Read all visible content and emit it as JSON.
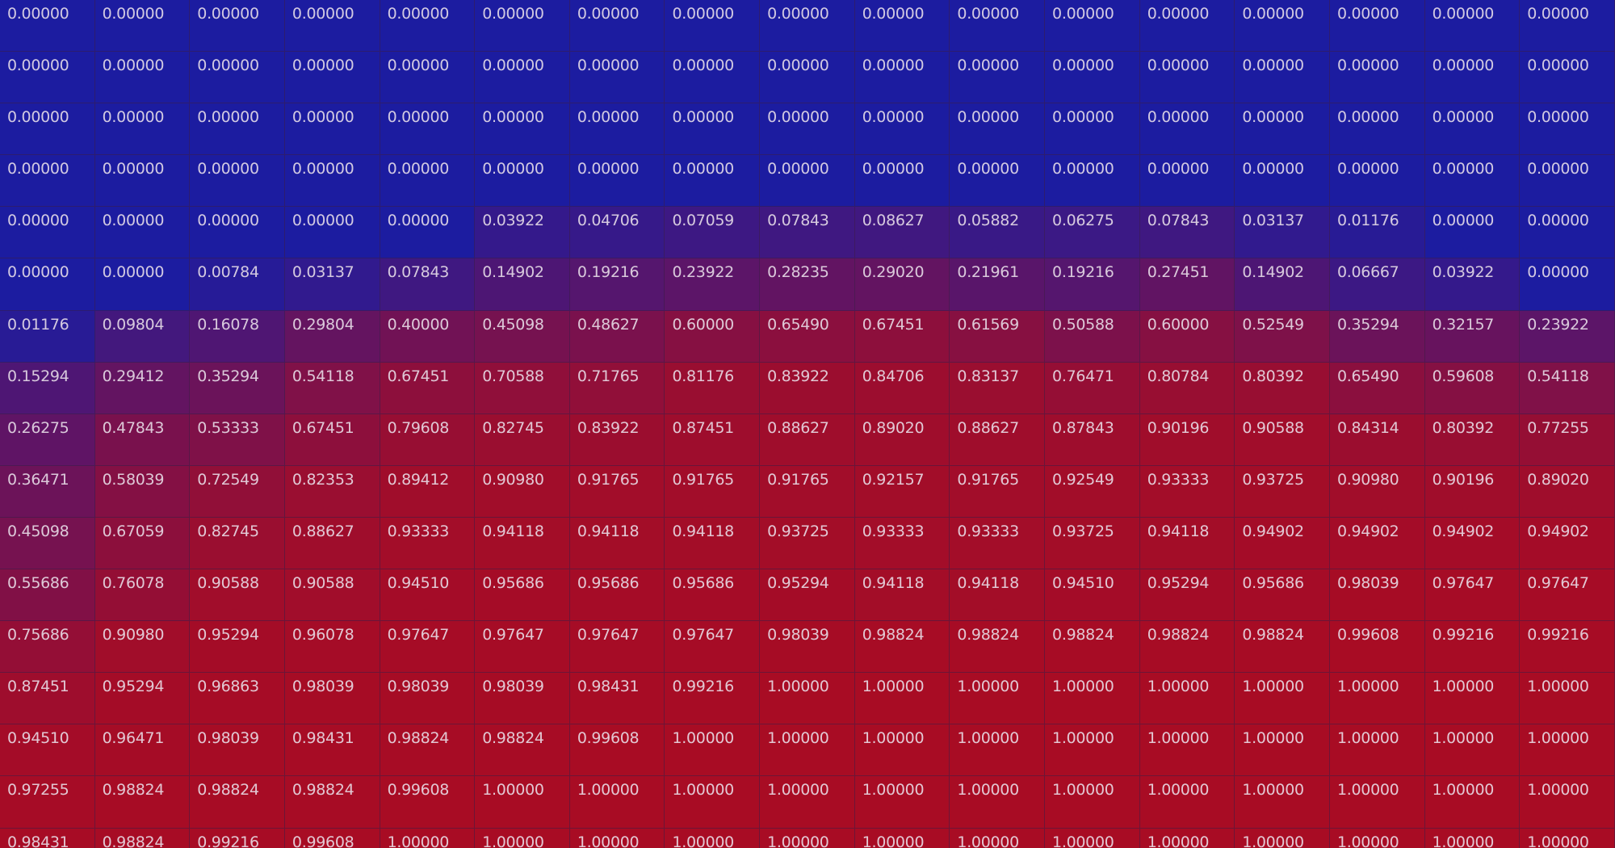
{
  "chart_data": {
    "type": "heatmap",
    "colors": {
      "low": "#1c1ca0",
      "high": "#a80c24"
    },
    "values": [
      [
        "0.00000",
        "0.00000",
        "0.00000",
        "0.00000",
        "0.00000",
        "0.00000",
        "0.00000",
        "0.00000",
        "0.00000",
        "0.00000",
        "0.00000",
        "0.00000",
        "0.00000",
        "0.00000",
        "0.00000",
        "0.00000",
        "0.00000"
      ],
      [
        "0.00000",
        "0.00000",
        "0.00000",
        "0.00000",
        "0.00000",
        "0.00000",
        "0.00000",
        "0.00000",
        "0.00000",
        "0.00000",
        "0.00000",
        "0.00000",
        "0.00000",
        "0.00000",
        "0.00000",
        "0.00000",
        "0.00000"
      ],
      [
        "0.00000",
        "0.00000",
        "0.00000",
        "0.00000",
        "0.00000",
        "0.00000",
        "0.00000",
        "0.00000",
        "0.00000",
        "0.00000",
        "0.00000",
        "0.00000",
        "0.00000",
        "0.00000",
        "0.00000",
        "0.00000",
        "0.00000"
      ],
      [
        "0.00000",
        "0.00000",
        "0.00000",
        "0.00000",
        "0.00000",
        "0.00000",
        "0.00000",
        "0.00000",
        "0.00000",
        "0.00000",
        "0.00000",
        "0.00000",
        "0.00000",
        "0.00000",
        "0.00000",
        "0.00000",
        "0.00000"
      ],
      [
        "0.00000",
        "0.00000",
        "0.00000",
        "0.00000",
        "0.00000",
        "0.03922",
        "0.04706",
        "0.07059",
        "0.07843",
        "0.08627",
        "0.05882",
        "0.06275",
        "0.07843",
        "0.03137",
        "0.01176",
        "0.00000",
        "0.00000"
      ],
      [
        "0.00000",
        "0.00000",
        "0.00784",
        "0.03137",
        "0.07843",
        "0.14902",
        "0.19216",
        "0.23922",
        "0.28235",
        "0.29020",
        "0.21961",
        "0.19216",
        "0.27451",
        "0.14902",
        "0.06667",
        "0.03922",
        "0.00000"
      ],
      [
        "0.01176",
        "0.09804",
        "0.16078",
        "0.29804",
        "0.40000",
        "0.45098",
        "0.48627",
        "0.60000",
        "0.65490",
        "0.67451",
        "0.61569",
        "0.50588",
        "0.60000",
        "0.52549",
        "0.35294",
        "0.32157",
        "0.23922"
      ],
      [
        "0.15294",
        "0.29412",
        "0.35294",
        "0.54118",
        "0.67451",
        "0.70588",
        "0.71765",
        "0.81176",
        "0.83922",
        "0.84706",
        "0.83137",
        "0.76471",
        "0.80784",
        "0.80392",
        "0.65490",
        "0.59608",
        "0.54118"
      ],
      [
        "0.26275",
        "0.47843",
        "0.53333",
        "0.67451",
        "0.79608",
        "0.82745",
        "0.83922",
        "0.87451",
        "0.88627",
        "0.89020",
        "0.88627",
        "0.87843",
        "0.90196",
        "0.90588",
        "0.84314",
        "0.80392",
        "0.77255"
      ],
      [
        "0.36471",
        "0.58039",
        "0.72549",
        "0.82353",
        "0.89412",
        "0.90980",
        "0.91765",
        "0.91765",
        "0.91765",
        "0.92157",
        "0.91765",
        "0.92549",
        "0.93333",
        "0.93725",
        "0.90980",
        "0.90196",
        "0.89020"
      ],
      [
        "0.45098",
        "0.67059",
        "0.82745",
        "0.88627",
        "0.93333",
        "0.94118",
        "0.94118",
        "0.94118",
        "0.93725",
        "0.93333",
        "0.93333",
        "0.93725",
        "0.94118",
        "0.94902",
        "0.94902",
        "0.94902",
        "0.94902"
      ],
      [
        "0.55686",
        "0.76078",
        "0.90588",
        "0.90588",
        "0.94510",
        "0.95686",
        "0.95686",
        "0.95686",
        "0.95294",
        "0.94118",
        "0.94118",
        "0.94510",
        "0.95294",
        "0.95686",
        "0.98039",
        "0.97647",
        "0.97647"
      ],
      [
        "0.75686",
        "0.90980",
        "0.95294",
        "0.96078",
        "0.97647",
        "0.97647",
        "0.97647",
        "0.97647",
        "0.98039",
        "0.98824",
        "0.98824",
        "0.98824",
        "0.98824",
        "0.98824",
        "0.99608",
        "0.99216",
        "0.99216"
      ],
      [
        "0.87451",
        "0.95294",
        "0.96863",
        "0.98039",
        "0.98039",
        "0.98039",
        "0.98431",
        "0.99216",
        "1.00000",
        "1.00000",
        "1.00000",
        "1.00000",
        "1.00000",
        "1.00000",
        "1.00000",
        "1.00000",
        "1.00000"
      ],
      [
        "0.94510",
        "0.96471",
        "0.98039",
        "0.98431",
        "0.98824",
        "0.98824",
        "0.99608",
        "1.00000",
        "1.00000",
        "1.00000",
        "1.00000",
        "1.00000",
        "1.00000",
        "1.00000",
        "1.00000",
        "1.00000",
        "1.00000"
      ],
      [
        "0.97255",
        "0.98824",
        "0.98824",
        "0.98824",
        "0.99608",
        "1.00000",
        "1.00000",
        "1.00000",
        "1.00000",
        "1.00000",
        "1.00000",
        "1.00000",
        "1.00000",
        "1.00000",
        "1.00000",
        "1.00000",
        "1.00000"
      ],
      [
        "0.98431",
        "0.98824",
        "0.99216",
        "0.99608",
        "1.00000",
        "1.00000",
        "1.00000",
        "1.00000",
        "1.00000",
        "1.00000",
        "1.00000",
        "1.00000",
        "1.00000",
        "1.00000",
        "1.00000",
        "1.00000",
        "1.00000"
      ]
    ]
  }
}
